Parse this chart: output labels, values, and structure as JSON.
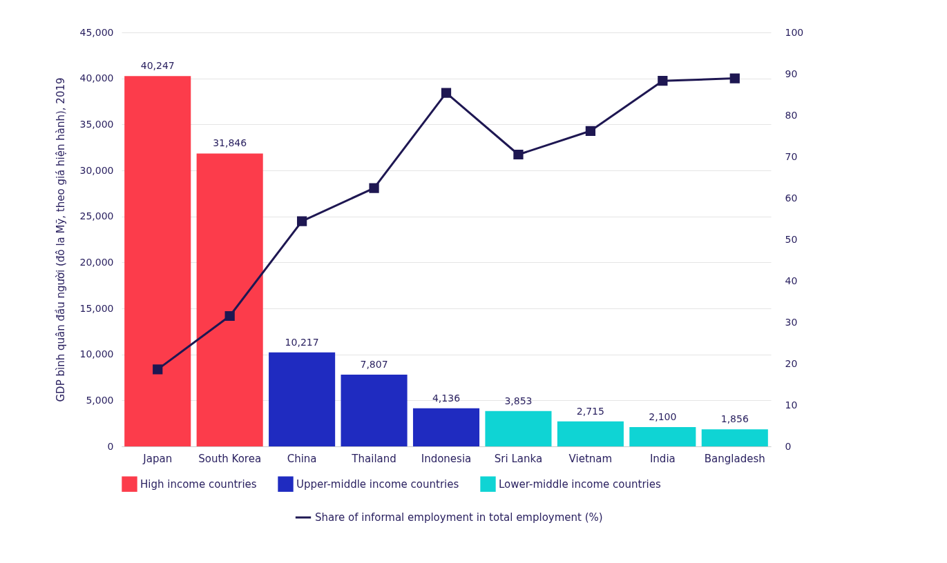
{
  "chart_data": {
    "type": "bar",
    "ylabel": "GDP bình quân đầu người (đô la Mỹ, theo giá hiện hành), 2019",
    "categories": [
      "Japan",
      "South Korea",
      "China",
      "Thailand",
      "Indonesia",
      "Sri Lanka",
      "Vietnam",
      "India",
      "Bangladesh"
    ],
    "series": [
      {
        "name": "High income countries",
        "color": "#fc3c4b",
        "values": [
          40247,
          31846,
          null,
          null,
          null,
          null,
          null,
          null,
          null
        ],
        "value_labels": [
          "40,247",
          "31,846",
          null,
          null,
          null,
          null,
          null,
          null,
          null
        ]
      },
      {
        "name": "Upper-middle income countries",
        "color": "#1f2bc0",
        "values": [
          null,
          null,
          10217,
          7807,
          4136,
          null,
          null,
          null,
          null
        ],
        "value_labels": [
          null,
          null,
          "10,217",
          "7,807",
          "4,136",
          null,
          null,
          null,
          null
        ]
      },
      {
        "name": "Lower-middle income countries",
        "color": "#0fd4d4",
        "values": [
          null,
          null,
          null,
          null,
          null,
          3853,
          2715,
          2100,
          1856
        ],
        "value_labels": [
          null,
          null,
          null,
          null,
          null,
          "3,853",
          "2,715",
          "2,100",
          "1,856"
        ]
      },
      {
        "name": "Share of informal employment in total employment (%)",
        "type": "line",
        "axis": "y2",
        "color": "#1e1752",
        "marker": "square",
        "values": [
          18.6,
          31.5,
          54.4,
          62.4,
          85.4,
          70.5,
          76.2,
          88.3,
          88.9
        ]
      }
    ],
    "ylim": [
      0,
      45000
    ],
    "yticks": [
      0,
      {
        "value": 5000,
        "label": "5,000"
      },
      {
        "value": 10000,
        "label": "10,000"
      },
      {
        "value": 15000,
        "label": "15,000"
      },
      {
        "value": 20000,
        "label": "20,000"
      },
      {
        "value": 25000,
        "label": "25,000"
      },
      {
        "value": 30000,
        "label": "30,000"
      },
      {
        "value": 35000,
        "label": "35,000"
      },
      {
        "value": 40000,
        "label": "40,000"
      },
      {
        "value": 45000,
        "label": "45,000"
      }
    ],
    "y2lim": [
      0,
      100
    ],
    "y2ticks": [
      0,
      10,
      20,
      30,
      40,
      50,
      60,
      70,
      80,
      90,
      100
    ],
    "grid": "y",
    "legend": "bottom"
  }
}
